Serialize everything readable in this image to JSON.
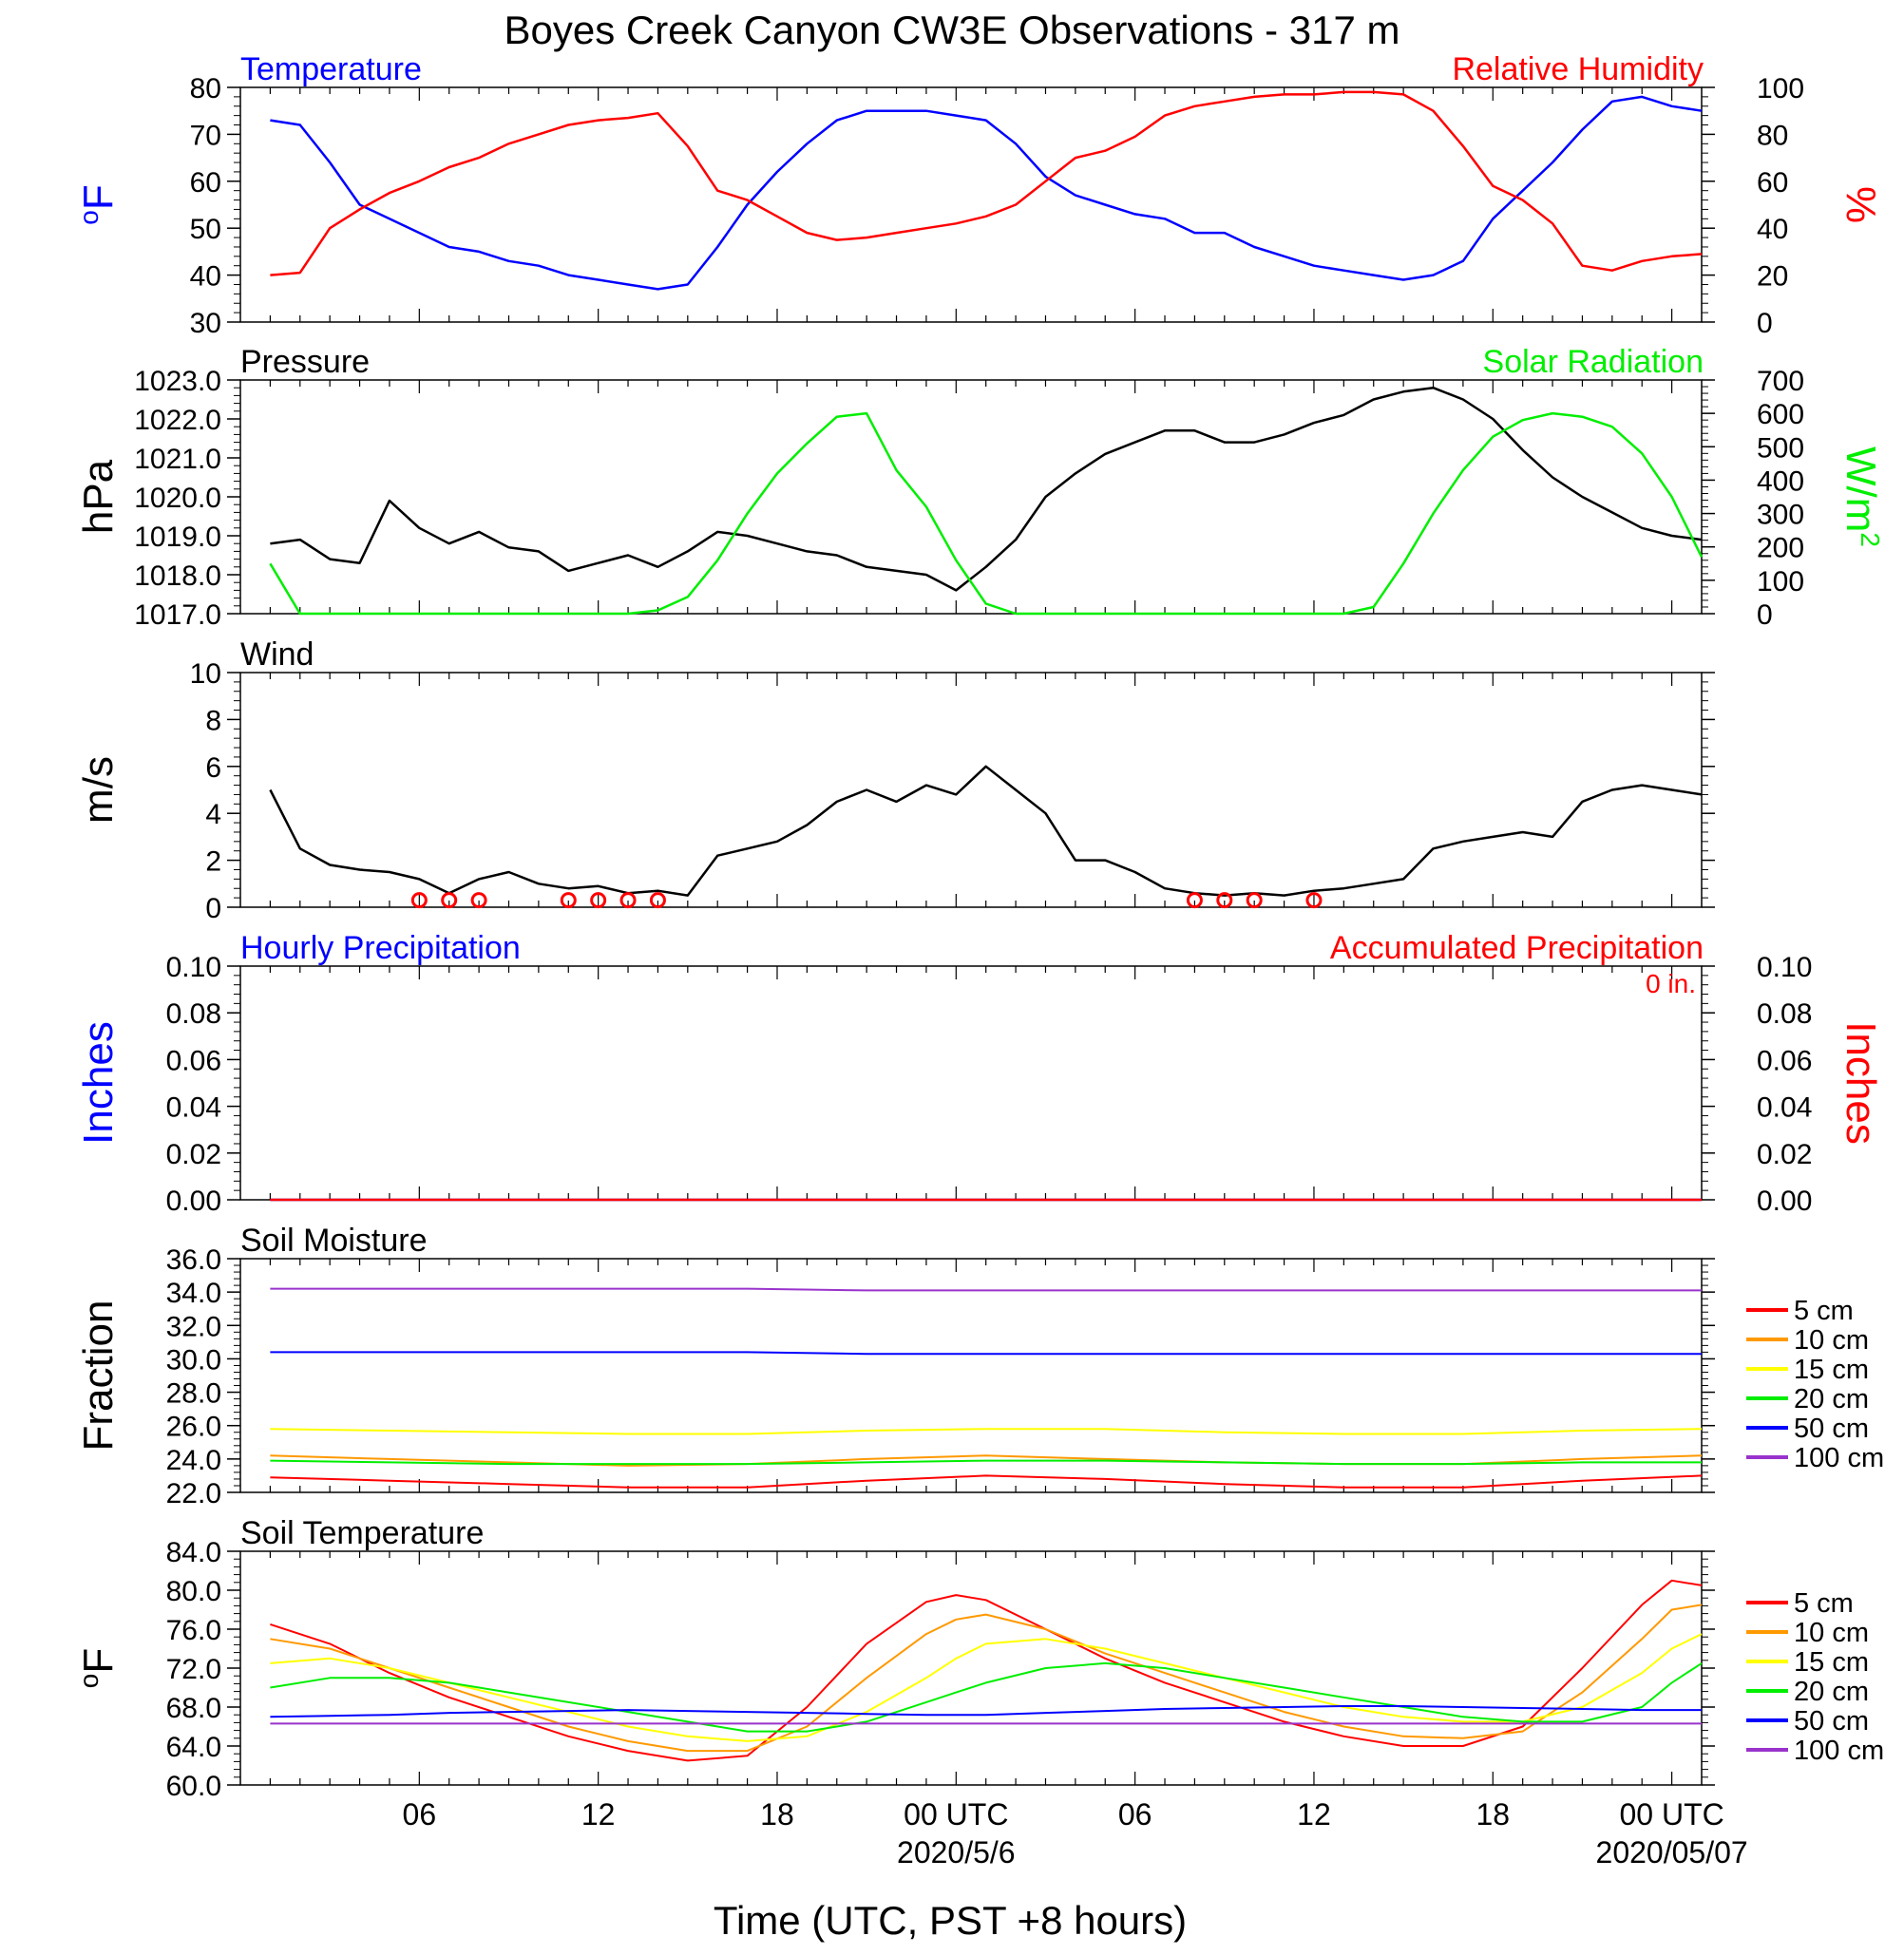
{
  "title": "Boyes Creek Canyon CW3E Observations - 317 m",
  "xlabel": "Time (UTC, PST +8 hours)",
  "x_ticks": [
    "06",
    "12",
    "18",
    "00 UTC",
    "06",
    "12",
    "18",
    "00 UTC"
  ],
  "x_dates": [
    "2020/5/6",
    "2020/05/07"
  ],
  "colors": {
    "blue": "#0000ff",
    "red": "#ff0000",
    "green": "#00ee00",
    "black": "#000000",
    "orange": "#ff9900",
    "yellow": "#ffff00",
    "purple": "#9933cc"
  },
  "chart_data": [
    {
      "type": "line",
      "left_title": "Temperature",
      "right_title": "Relative Humidity",
      "ylabel_left": "°F",
      "ylabel_right": "%",
      "ylim_left": [
        30,
        80
      ],
      "ylim_right": [
        0,
        100
      ],
      "ticks_left": [
        "80",
        "70",
        "60",
        "50",
        "40",
        "30"
      ],
      "ticks_right": [
        "100",
        "80",
        "60",
        "40",
        "20",
        "0"
      ],
      "x_hours": [
        1,
        2,
        3,
        4,
        5,
        6,
        7,
        8,
        9,
        10,
        11,
        12,
        13,
        14,
        15,
        16,
        17,
        18,
        19,
        20,
        21,
        22,
        23,
        24,
        25,
        26,
        27,
        28,
        29,
        30,
        31,
        32,
        33,
        34,
        35,
        36,
        37,
        38,
        39,
        40,
        41,
        42,
        43,
        44,
        45,
        46,
        47,
        48,
        49
      ],
      "series": [
        {
          "name": "Temperature",
          "axis": "left",
          "color": "blue",
          "values": [
            73,
            72,
            64,
            55,
            52,
            49,
            46,
            45,
            43,
            42,
            40,
            39,
            38,
            37,
            38,
            46,
            55,
            62,
            68,
            73,
            75,
            75,
            75,
            74,
            73,
            68,
            61,
            57,
            55,
            53,
            52,
            49,
            49,
            46,
            44,
            42,
            41,
            40,
            39,
            40,
            43,
            52,
            58,
            64,
            71,
            77,
            78,
            76,
            75
          ]
        },
        {
          "name": "Relative Humidity",
          "axis": "right",
          "color": "red",
          "values": [
            20,
            21,
            40,
            48,
            55,
            60,
            66,
            70,
            76,
            80,
            84,
            86,
            87,
            89,
            75,
            56,
            52,
            45,
            38,
            35,
            36,
            38,
            40,
            42,
            45,
            50,
            60,
            70,
            73,
            79,
            88,
            92,
            94,
            96,
            97,
            97,
            98,
            98,
            97,
            90,
            75,
            58,
            52,
            42,
            24,
            22,
            26,
            28,
            29
          ]
        }
      ]
    },
    {
      "type": "line",
      "left_title": "Pressure",
      "right_title": "Solar Radiation",
      "ylabel_left": "hPa",
      "ylabel_right": "W/m2",
      "ylim_left": [
        1017,
        1023
      ],
      "ylim_right": [
        0,
        700
      ],
      "ticks_left": [
        "1023.0",
        "1022.0",
        "1021.0",
        "1020.0",
        "1019.0",
        "1018.0",
        "1017.0"
      ],
      "ticks_right": [
        "700",
        "600",
        "500",
        "400",
        "300",
        "200",
        "100",
        "0"
      ],
      "x_hours": [
        1,
        2,
        3,
        4,
        5,
        6,
        7,
        8,
        9,
        10,
        11,
        12,
        13,
        14,
        15,
        16,
        17,
        18,
        19,
        20,
        21,
        22,
        23,
        24,
        25,
        26,
        27,
        28,
        29,
        30,
        31,
        32,
        33,
        34,
        35,
        36,
        37,
        38,
        39,
        40,
        41,
        42,
        43,
        44,
        45,
        46,
        47,
        48,
        49
      ],
      "series": [
        {
          "name": "Pressure",
          "axis": "left",
          "color": "black",
          "values": [
            1018.8,
            1018.9,
            1018.4,
            1018.3,
            1019.9,
            1019.2,
            1018.8,
            1019.1,
            1018.7,
            1018.6,
            1018.1,
            1018.3,
            1018.5,
            1018.2,
            1018.6,
            1019.1,
            1019.0,
            1018.8,
            1018.6,
            1018.5,
            1018.2,
            1018.1,
            1018.0,
            1017.6,
            1018.2,
            1018.9,
            1020.0,
            1020.6,
            1021.1,
            1021.4,
            1021.7,
            1021.7,
            1021.4,
            1021.4,
            1021.6,
            1021.9,
            1022.1,
            1022.5,
            1022.7,
            1022.8,
            1022.5,
            1022.0,
            1021.2,
            1020.5,
            1020.0,
            1019.6,
            1019.2,
            1019.0,
            1018.9
          ]
        },
        {
          "name": "Solar Radiation",
          "axis": "right",
          "color": "green",
          "values": [
            150,
            0,
            0,
            0,
            0,
            0,
            0,
            0,
            0,
            0,
            0,
            0,
            0,
            10,
            50,
            160,
            300,
            420,
            510,
            590,
            600,
            430,
            320,
            160,
            30,
            0,
            0,
            0,
            0,
            0,
            0,
            0,
            0,
            0,
            0,
            0,
            0,
            20,
            150,
            300,
            430,
            530,
            580,
            600,
            590,
            560,
            480,
            350,
            170
          ]
        }
      ]
    },
    {
      "type": "line",
      "left_title": "Wind",
      "ylabel_left": "m/s",
      "ylim_left": [
        0,
        10
      ],
      "ticks_left": [
        "10",
        "8",
        "6",
        "4",
        "2",
        "0"
      ],
      "x_hours": [
        1,
        2,
        3,
        4,
        5,
        6,
        7,
        8,
        9,
        10,
        11,
        12,
        13,
        14,
        15,
        16,
        17,
        18,
        19,
        20,
        21,
        22,
        23,
        24,
        25,
        26,
        27,
        28,
        29,
        30,
        31,
        32,
        33,
        34,
        35,
        36,
        37,
        38,
        39,
        40,
        41,
        42,
        43,
        44,
        45,
        46,
        47,
        48,
        49
      ],
      "series": [
        {
          "name": "Wind speed",
          "axis": "left",
          "color": "black",
          "values": [
            5.0,
            2.5,
            1.8,
            1.6,
            1.5,
            1.2,
            0.6,
            1.2,
            1.5,
            1.0,
            0.8,
            0.9,
            0.6,
            0.7,
            0.5,
            2.2,
            2.5,
            2.8,
            3.5,
            4.5,
            5.0,
            4.5,
            5.2,
            4.8,
            6.0,
            5.0,
            4.0,
            2.0,
            2.0,
            1.5,
            0.8,
            0.6,
            0.5,
            0.6,
            0.5,
            0.7,
            0.8,
            1.0,
            1.2,
            2.5,
            2.8,
            3.0,
            3.2,
            3.0,
            4.5,
            5.0,
            5.2,
            5.0,
            4.8
          ]
        }
      ],
      "calm_hours": [
        6,
        7,
        8,
        11,
        12,
        13,
        14,
        32,
        33,
        34,
        36
      ]
    },
    {
      "type": "line",
      "left_title": "Hourly Precipitation",
      "right_title": "Accumulated Precipitation",
      "annotation": "0 in.",
      "ylabel_left": "Inches",
      "ylabel_right": "Inches",
      "ylim_left": [
        0,
        0.1
      ],
      "ylim_right": [
        0,
        0.1
      ],
      "ticks_left": [
        "0.10",
        "0.08",
        "0.06",
        "0.04",
        "0.02",
        "0.00"
      ],
      "ticks_right": [
        "0.10",
        "0.08",
        "0.06",
        "0.04",
        "0.02",
        "0.00"
      ],
      "x_hours": [
        1,
        49
      ],
      "series": [
        {
          "name": "Hourly Precipitation",
          "axis": "left",
          "color": "blue",
          "values": [
            0,
            0
          ]
        },
        {
          "name": "Accumulated Precipitation",
          "axis": "right",
          "color": "red",
          "values": [
            0,
            0
          ]
        }
      ]
    },
    {
      "type": "line",
      "left_title": "Soil Moisture",
      "ylabel_left": "Fraction",
      "ylim_left": [
        22,
        36
      ],
      "ticks_left": [
        "36.0",
        "34.0",
        "32.0",
        "30.0",
        "28.0",
        "26.0",
        "24.0",
        "22.0"
      ],
      "x_hours": [
        1,
        5,
        9,
        13,
        17,
        21,
        25,
        29,
        33,
        37,
        41,
        45,
        49
      ],
      "series": [
        {
          "name": "5 cm",
          "color": "red",
          "values": [
            22.9,
            22.7,
            22.5,
            22.3,
            22.3,
            22.7,
            23.0,
            22.8,
            22.5,
            22.3,
            22.3,
            22.7,
            23.0
          ]
        },
        {
          "name": "10 cm",
          "color": "orange",
          "values": [
            24.2,
            24.0,
            23.8,
            23.6,
            23.7,
            24.0,
            24.2,
            24.0,
            23.8,
            23.7,
            23.7,
            24.0,
            24.2
          ]
        },
        {
          "name": "15 cm",
          "color": "yellow",
          "values": [
            25.8,
            25.7,
            25.6,
            25.5,
            25.5,
            25.7,
            25.8,
            25.8,
            25.6,
            25.5,
            25.5,
            25.7,
            25.8
          ]
        },
        {
          "name": "20 cm",
          "color": "green",
          "values": [
            23.9,
            23.8,
            23.7,
            23.7,
            23.7,
            23.8,
            23.9,
            23.9,
            23.8,
            23.7,
            23.7,
            23.8,
            23.8
          ]
        },
        {
          "name": "50 cm",
          "color": "blue",
          "values": [
            30.4,
            30.4,
            30.4,
            30.4,
            30.4,
            30.3,
            30.3,
            30.3,
            30.3,
            30.3,
            30.3,
            30.3,
            30.3
          ]
        },
        {
          "name": "100 cm",
          "color": "purple",
          "values": [
            34.2,
            34.2,
            34.2,
            34.2,
            34.2,
            34.1,
            34.1,
            34.1,
            34.1,
            34.1,
            34.1,
            34.1,
            34.1
          ]
        }
      ]
    },
    {
      "type": "line",
      "left_title": "Soil Temperature",
      "ylabel_left": "°F",
      "ylim_left": [
        60,
        84
      ],
      "ticks_left": [
        "84.0",
        "80.0",
        "76.0",
        "72.0",
        "68.0",
        "64.0",
        "60.0"
      ],
      "x_hours": [
        1,
        3,
        5,
        7,
        9,
        11,
        13,
        15,
        17,
        19,
        21,
        23,
        24,
        25,
        27,
        29,
        31,
        33,
        35,
        37,
        39,
        41,
        43,
        45,
        47,
        48,
        49
      ],
      "series": [
        {
          "name": "5 cm",
          "color": "red",
          "values": [
            76.5,
            74.5,
            71.5,
            69.0,
            67.0,
            65.0,
            63.5,
            62.5,
            63.0,
            68.0,
            74.5,
            78.8,
            79.5,
            79.0,
            76.0,
            73.0,
            70.5,
            68.5,
            66.5,
            65.0,
            64.0,
            64.0,
            66.0,
            72.0,
            78.5,
            81.0,
            80.5
          ]
        },
        {
          "name": "10 cm",
          "color": "orange",
          "values": [
            75.0,
            74.0,
            72.0,
            70.0,
            68.0,
            66.0,
            64.5,
            63.5,
            63.5,
            66.0,
            71.0,
            75.5,
            77.0,
            77.5,
            76.0,
            73.5,
            71.5,
            69.5,
            67.5,
            66.0,
            65.0,
            64.8,
            65.5,
            69.5,
            75.0,
            78.0,
            78.5
          ]
        },
        {
          "name": "15 cm",
          "color": "yellow",
          "values": [
            72.5,
            73.0,
            72.0,
            70.5,
            69.0,
            67.5,
            66.0,
            65.0,
            64.5,
            65.0,
            67.5,
            71.0,
            73.0,
            74.5,
            75.0,
            74.0,
            72.5,
            71.0,
            69.5,
            68.0,
            67.0,
            66.5,
            66.5,
            68.0,
            71.5,
            74.0,
            75.5
          ]
        },
        {
          "name": "20 cm",
          "color": "green",
          "values": [
            70.0,
            71.0,
            71.0,
            70.5,
            69.5,
            68.5,
            67.5,
            66.5,
            65.5,
            65.5,
            66.5,
            68.5,
            69.5,
            70.5,
            72.0,
            72.5,
            72.0,
            71.0,
            70.0,
            69.0,
            68.0,
            67.0,
            66.5,
            66.5,
            68.0,
            70.5,
            72.5
          ]
        },
        {
          "name": "50 cm",
          "color": "blue",
          "values": [
            67.0,
            67.1,
            67.2,
            67.4,
            67.5,
            67.6,
            67.7,
            67.6,
            67.5,
            67.4,
            67.3,
            67.2,
            67.2,
            67.2,
            67.4,
            67.6,
            67.8,
            67.9,
            68.0,
            68.1,
            68.1,
            68.0,
            67.9,
            67.8,
            67.7,
            67.7,
            67.7
          ]
        },
        {
          "name": "100 cm",
          "color": "purple",
          "values": [
            66.3,
            66.3,
            66.3,
            66.3,
            66.3,
            66.3,
            66.3,
            66.3,
            66.3,
            66.3,
            66.3,
            66.3,
            66.3,
            66.3,
            66.3,
            66.3,
            66.3,
            66.3,
            66.3,
            66.3,
            66.3,
            66.3,
            66.3,
            66.3,
            66.3,
            66.3,
            66.3
          ]
        }
      ]
    }
  ],
  "legend": {
    "entries": [
      "5 cm",
      "10 cm",
      "15 cm",
      "20 cm",
      "50 cm",
      "100 cm"
    ]
  }
}
